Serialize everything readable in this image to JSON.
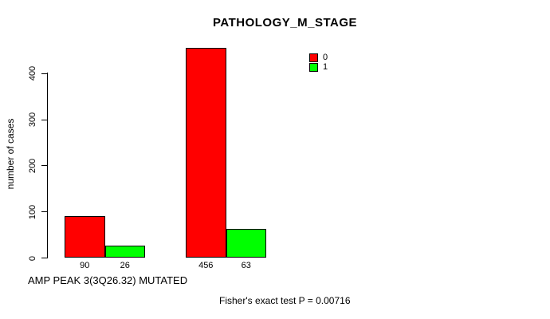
{
  "chart_data": {
    "type": "bar",
    "title": "PATHOLOGY_M_STAGE",
    "ylabel": "number of cases",
    "xlabel": "AMP PEAK 3(3Q26.32) MUTATED",
    "annotation": "Fisher's exact test P = 0.00716",
    "ylim": [
      0,
      460
    ],
    "yticks": [
      0,
      100,
      200,
      300,
      400
    ],
    "grid": false,
    "legend_position": "top-right",
    "categories": [
      "",
      ""
    ],
    "series": [
      {
        "name": "0",
        "color": "#FF0000",
        "values": [
          90,
          456
        ]
      },
      {
        "name": "1",
        "color": "#00FF00",
        "values": [
          26,
          63
        ]
      }
    ],
    "bar_count_labels": [
      [
        "90",
        "26"
      ],
      [
        "456",
        "63"
      ]
    ]
  }
}
